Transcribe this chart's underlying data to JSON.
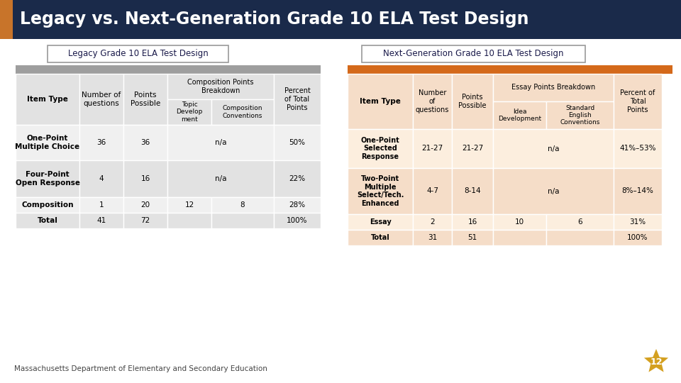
{
  "title": "Legacy vs. Next-Generation Grade 10 ELA Test Design",
  "title_bg": "#1a2a4a",
  "title_color": "#ffffff",
  "accent_color": "#c8742a",
  "left_table_title": "Legacy Grade 10 ELA Test Design",
  "right_table_title": "Next-Generation Grade 10 ELA Test Design",
  "footer_text": "Massachusetts Department of Elementary and Secondary Education",
  "page_num": "12",
  "left_header_band_bg": "#9e9e9e",
  "left_cell_bg": "#e2e2e2",
  "left_cell_bg2": "#f0f0f0",
  "right_header_band_bg": "#d4691a",
  "right_cell_bg": "#f5ddc8",
  "right_cell_bg2": "#fceede",
  "border_color": "#ffffff",
  "star_color": "#d4a020"
}
